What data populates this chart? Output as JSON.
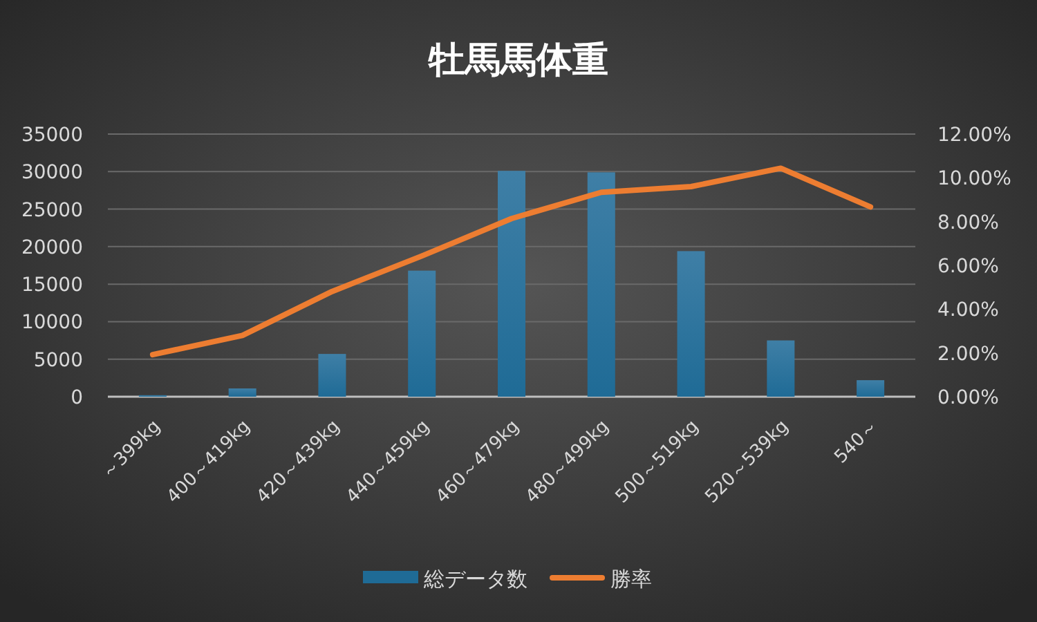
{
  "chart_data": {
    "type": "bar",
    "title": "牡馬馬体重",
    "categories": [
      "～399kg",
      "400～419kg",
      "420～439kg",
      "440～459kg",
      "460～479kg",
      "480～499kg",
      "500～519kg",
      "520～539kg",
      "540～"
    ],
    "series": [
      {
        "name": "総データ数",
        "color": "#1f6b96",
        "values": [
          200,
          1100,
          5700,
          16800,
          30100,
          29900,
          19400,
          7500,
          2200
        ]
      },
      {
        "name": "勝率",
        "type": "line",
        "axis": "y2",
        "color": "#ed7d31",
        "values": [
          1.92,
          2.8,
          4.81,
          6.43,
          8.14,
          9.34,
          9.6,
          10.44,
          8.67
        ]
      }
    ],
    "ylim": [
      0,
      35000
    ],
    "yticks": [
      0,
      5000,
      10000,
      15000,
      20000,
      25000,
      30000,
      35000
    ],
    "y2lim": [
      0,
      12
    ],
    "y2ticks": [
      {
        "value": 0,
        "label": "0.00%"
      },
      {
        "value": 2,
        "label": "2.00%"
      },
      {
        "value": 4,
        "label": "4.00%"
      },
      {
        "value": 6,
        "label": "6.00%"
      },
      {
        "value": 8,
        "label": "8.00%"
      },
      {
        "value": 10,
        "label": "10.00%"
      },
      {
        "value": 12,
        "label": "12.00%"
      }
    ],
    "grid": "y",
    "legend": "bottom"
  }
}
